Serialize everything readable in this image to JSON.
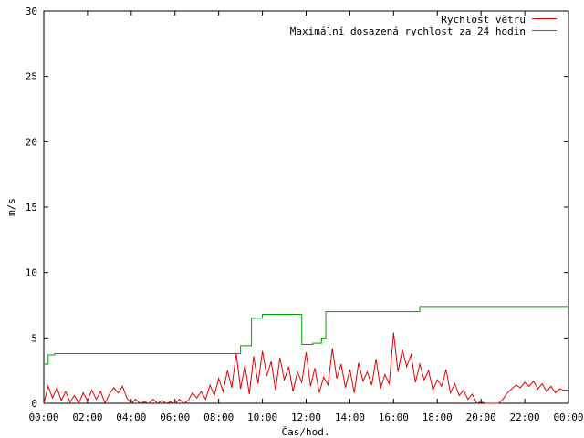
{
  "chart_data": {
    "type": "line",
    "xlabel": "Čas/hod.",
    "ylabel": "m/s",
    "xlim": [
      0,
      24
    ],
    "ylim": [
      0,
      30
    ],
    "x_ticks": [
      0,
      2,
      4,
      6,
      8,
      10,
      12,
      14,
      16,
      18,
      20,
      22,
      24
    ],
    "x_tick_labels": [
      "00:00",
      "02:00",
      "04:00",
      "06:00",
      "08:00",
      "10:00",
      "12:00",
      "14:00",
      "16:00",
      "18:00",
      "20:00",
      "22:00",
      "00:00"
    ],
    "y_ticks": [
      0,
      5,
      10,
      15,
      20,
      25,
      30
    ],
    "y_tick_labels": [
      "0",
      "5",
      "10",
      "15",
      "20",
      "25",
      "30"
    ],
    "legend_position": "top-right",
    "grid": false,
    "series": [
      {
        "name": "Rychlost větru",
        "color": "#e00000",
        "x": [
          0.0,
          0.2,
          0.4,
          0.6,
          0.8,
          1.0,
          1.2,
          1.4,
          1.6,
          1.8,
          2.0,
          2.2,
          2.4,
          2.6,
          2.8,
          3.0,
          3.2,
          3.4,
          3.6,
          3.8,
          4.0,
          4.2,
          4.4,
          4.6,
          4.8,
          5.0,
          5.2,
          5.4,
          5.6,
          5.8,
          6.0,
          6.2,
          6.4,
          6.6,
          6.8,
          7.0,
          7.2,
          7.4,
          7.6,
          7.8,
          8.0,
          8.2,
          8.4,
          8.6,
          8.8,
          9.0,
          9.2,
          9.4,
          9.6,
          9.8,
          10.0,
          10.2,
          10.4,
          10.6,
          10.8,
          11.0,
          11.2,
          11.4,
          11.6,
          11.8,
          12.0,
          12.2,
          12.4,
          12.6,
          12.8,
          13.0,
          13.2,
          13.4,
          13.6,
          13.8,
          14.0,
          14.2,
          14.4,
          14.6,
          14.8,
          15.0,
          15.2,
          15.4,
          15.6,
          15.8,
          16.0,
          16.2,
          16.4,
          16.6,
          16.8,
          17.0,
          17.2,
          17.4,
          17.6,
          17.8,
          18.0,
          18.2,
          18.4,
          18.6,
          18.8,
          19.0,
          19.2,
          19.4,
          19.6,
          19.8,
          20.0,
          20.2,
          20.4,
          20.6,
          20.8,
          21.0,
          21.2,
          21.4,
          21.6,
          21.8,
          22.0,
          22.2,
          22.4,
          22.6,
          22.8,
          23.0,
          23.2,
          23.4,
          23.6,
          23.8,
          24.0
        ],
        "values": [
          0.0,
          1.3,
          0.4,
          1.2,
          0.2,
          0.9,
          0.1,
          0.6,
          0.0,
          0.8,
          0.2,
          1.0,
          0.3,
          0.9,
          0.0,
          0.7,
          1.2,
          0.8,
          1.3,
          0.4,
          0.0,
          0.3,
          0.0,
          0.1,
          0.0,
          0.3,
          0.0,
          0.2,
          0.0,
          0.1,
          0.0,
          0.3,
          0.0,
          0.2,
          0.8,
          0.4,
          0.9,
          0.3,
          1.4,
          0.6,
          1.9,
          0.9,
          2.5,
          1.2,
          3.8,
          1.1,
          2.9,
          0.7,
          3.6,
          1.5,
          4.0,
          2.1,
          3.2,
          1.0,
          3.5,
          1.8,
          2.8,
          0.9,
          2.4,
          1.6,
          3.9,
          1.3,
          2.7,
          0.8,
          2.0,
          1.4,
          4.2,
          1.9,
          3.0,
          1.2,
          2.6,
          0.8,
          3.1,
          1.7,
          2.4,
          1.4,
          3.4,
          1.1,
          2.2,
          1.5,
          5.4,
          2.4,
          4.1,
          2.8,
          3.7,
          1.6,
          3.0,
          1.8,
          2.5,
          1.0,
          1.8,
          1.3,
          2.6,
          0.8,
          1.5,
          0.6,
          1.0,
          0.3,
          0.7,
          0.0,
          0.1,
          0.0,
          0.0,
          0.0,
          0.0,
          0.3,
          0.8,
          1.1,
          1.4,
          1.2,
          1.6,
          1.3,
          1.7,
          1.1,
          1.5,
          0.9,
          1.3,
          0.8,
          1.1,
          1.0,
          1.0
        ]
      },
      {
        "name": "Maximální dosazená rychlost za 24 hodin",
        "color": "#00a000",
        "x": [
          0.0,
          0.2,
          0.5,
          8.6,
          9.0,
          9.1,
          9.5,
          10.0,
          11.7,
          11.8,
          12.3,
          12.7,
          12.9,
          17.2,
          24.0
        ],
        "values": [
          3.0,
          3.7,
          3.8,
          3.8,
          4.4,
          4.4,
          6.5,
          6.8,
          6.8,
          4.5,
          4.6,
          5.0,
          7.0,
          7.4,
          7.4
        ]
      }
    ]
  }
}
